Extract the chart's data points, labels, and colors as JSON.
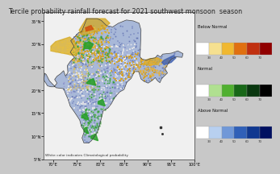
{
  "title": "Tercile probability rainfall forecast for 2021 southwest monsoon  season",
  "title_fontsize": 5.8,
  "bg_color": "#c8c8c8",
  "map_outer_bg": "#f0f0f0",
  "map_sea_color": "#f0f0f0",
  "x_ticks": [
    "70°E",
    "75°E",
    "80°E",
    "85°E",
    "90°E",
    "95°E",
    "100°E"
  ],
  "x_tick_vals": [
    70,
    75,
    80,
    85,
    90,
    95,
    100
  ],
  "y_ticks": [
    "5°N",
    "10°N",
    "15°N",
    "20°N",
    "25°N",
    "30°N",
    "35°N"
  ],
  "y_tick_vals": [
    5,
    10,
    15,
    20,
    25,
    30,
    35
  ],
  "legend_labels": [
    "Below Normal",
    "Normal",
    "Above Normal"
  ],
  "legend_colors_below": [
    "#ffffff",
    "#f5e090",
    "#f0b830",
    "#e07010",
    "#c03010",
    "#900000"
  ],
  "legend_colors_normal": [
    "#ffffff",
    "#b0e090",
    "#50b030",
    "#186818",
    "#0a3810",
    "#000000"
  ],
  "legend_colors_above": [
    "#ffffff",
    "#b8d0f0",
    "#7098d8",
    "#3060b8",
    "#103890",
    "#001060"
  ],
  "legend_ticks": [
    "33",
    "40",
    "50",
    "60",
    "70"
  ],
  "note_text": "White color indicates Climatological probability",
  "note_fontsize": 3.2,
  "border_color": "#555555",
  "tick_fontsize": 3.5
}
